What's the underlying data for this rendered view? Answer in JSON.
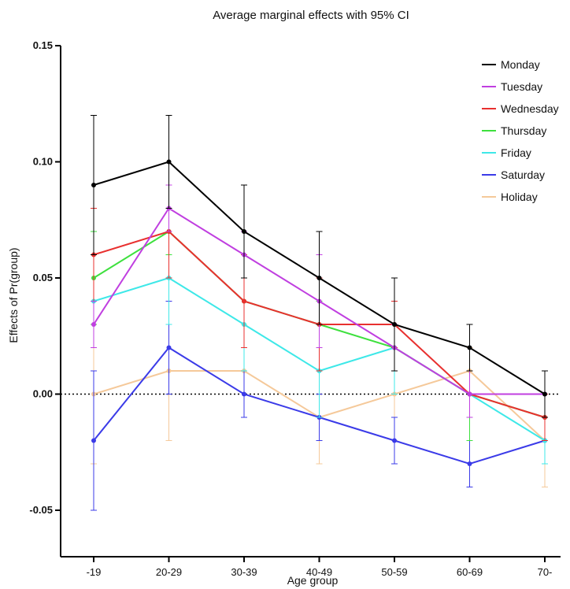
{
  "chart_data": {
    "type": "line",
    "title": "Average marginal effects with 95% CI",
    "xlabel": "Age group",
    "ylabel": "Effects of Pr(group)",
    "categories": [
      "-19",
      "20-29",
      "30-39",
      "40-49",
      "50-59",
      "60-69",
      "70-"
    ],
    "ylim": [
      -0.07,
      0.15
    ],
    "yticks": [
      0.15,
      0.1,
      0.05,
      0.0,
      -0.05
    ],
    "ytick_labels": [
      "0.15",
      "0.10",
      "0.05",
      "0.00",
      "-0.05"
    ],
    "reference_line": 0.0,
    "legend_position": "top-right",
    "series": [
      {
        "name": "Monday",
        "color": "#000000",
        "values": [
          0.09,
          0.1,
          0.07,
          0.05,
          0.03,
          0.02,
          0.0
        ],
        "lower": [
          0.06,
          0.08,
          0.05,
          0.03,
          0.01,
          0.01,
          -0.01
        ],
        "upper": [
          0.12,
          0.12,
          0.09,
          0.07,
          0.05,
          0.03,
          0.01
        ]
      },
      {
        "name": "Tuesday",
        "color": "#c03fe0",
        "values": [
          0.03,
          0.08,
          0.06,
          0.04,
          0.02,
          0.0,
          0.0
        ],
        "lower": [
          0.02,
          0.07,
          0.05,
          0.02,
          0.01,
          -0.01,
          -0.01
        ],
        "upper": [
          0.04,
          0.09,
          0.07,
          0.06,
          0.03,
          0.01,
          0.01
        ]
      },
      {
        "name": "Wednesday",
        "color": "#e8302f",
        "values": [
          0.06,
          0.07,
          0.04,
          0.03,
          0.03,
          0.0,
          -0.01
        ],
        "lower": [
          0.04,
          0.05,
          0.02,
          0.01,
          0.02,
          -0.01,
          -0.02
        ],
        "upper": [
          0.08,
          0.09,
          0.06,
          0.05,
          0.04,
          0.01,
          0.0
        ]
      },
      {
        "name": "Thursday",
        "color": "#3ee03e",
        "values": [
          0.05,
          0.07,
          0.04,
          0.03,
          0.02,
          0.0,
          -0.01
        ],
        "lower": [
          0.03,
          0.06,
          0.02,
          0.02,
          0.01,
          -0.02,
          -0.02
        ],
        "upper": [
          0.07,
          0.08,
          0.05,
          0.04,
          0.03,
          0.01,
          0.0
        ]
      },
      {
        "name": "Friday",
        "color": "#3ee8e8",
        "values": [
          0.04,
          0.05,
          0.03,
          0.01,
          0.02,
          0.0,
          -0.02
        ],
        "lower": [
          0.02,
          0.03,
          0.01,
          -0.01,
          0.0,
          -0.02,
          -0.03
        ],
        "upper": [
          0.06,
          0.07,
          0.05,
          0.03,
          0.04,
          0.01,
          -0.01
        ]
      },
      {
        "name": "Saturday",
        "color": "#3b3be8",
        "values": [
          -0.02,
          0.02,
          0.0,
          -0.01,
          -0.02,
          -0.03,
          -0.02
        ],
        "lower": [
          -0.05,
          0.0,
          -0.01,
          -0.02,
          -0.03,
          -0.04,
          -0.03
        ],
        "upper": [
          0.01,
          0.04,
          0.02,
          0.0,
          -0.01,
          -0.02,
          -0.01
        ]
      },
      {
        "name": "Holiday",
        "color": "#f5c99a",
        "values": [
          0.0,
          0.01,
          0.01,
          -0.01,
          0.0,
          0.01,
          -0.02
        ],
        "lower": [
          -0.03,
          -0.02,
          -0.01,
          -0.03,
          -0.02,
          -0.01,
          -0.04
        ],
        "upper": [
          0.02,
          0.03,
          0.03,
          0.01,
          0.02,
          0.02,
          0.0
        ]
      }
    ]
  }
}
